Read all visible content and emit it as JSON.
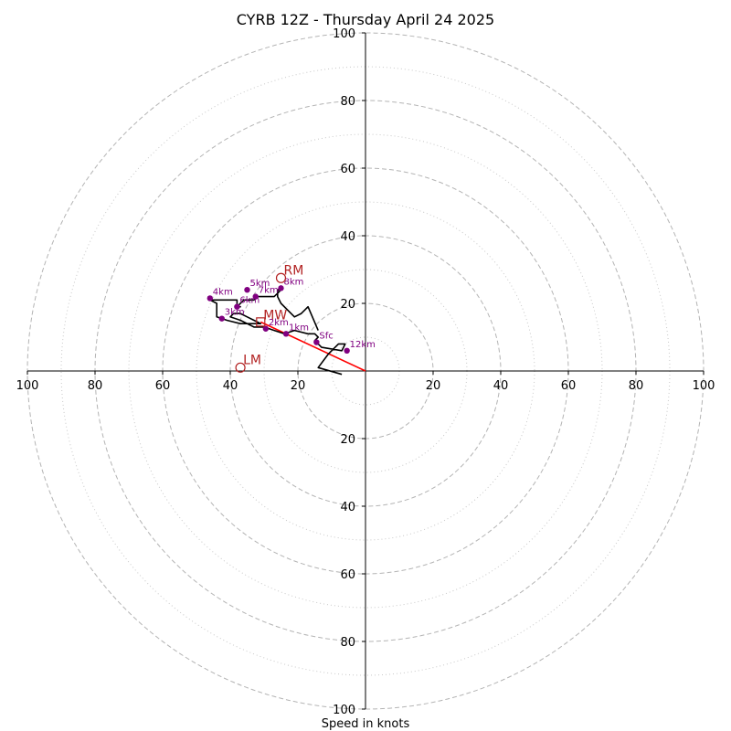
{
  "chart_data": {
    "type": "hodograph",
    "title": "CYRB 12Z - Thursday April 24 2025",
    "xlabel": "Speed in knots",
    "xlim": [
      -100,
      100
    ],
    "ylim": [
      -100,
      100
    ],
    "ring_major": [
      20,
      40,
      60,
      80,
      100
    ],
    "ring_minor": [
      10,
      30,
      50,
      70,
      90
    ],
    "x_ticks": [
      "100",
      "80",
      "60",
      "40",
      "20",
      "20",
      "40",
      "60",
      "80",
      "100"
    ],
    "x_tick_values": [
      -100,
      -80,
      -60,
      -40,
      -20,
      20,
      40,
      60,
      80,
      100
    ],
    "y_ticks": [
      "100",
      "80",
      "60",
      "40",
      "20",
      "20",
      "40",
      "60",
      "80",
      "100"
    ],
    "y_tick_values": [
      100,
      80,
      60,
      40,
      20,
      -20,
      -40,
      -60,
      -80,
      -100
    ],
    "profile": {
      "color": "#000000",
      "points": [
        [
          -7,
          -1
        ],
        [
          -14,
          1
        ],
        [
          -11,
          5
        ],
        [
          -8,
          8
        ],
        [
          -6,
          8
        ],
        [
          -7,
          6
        ],
        [
          -13,
          7
        ],
        [
          -15,
          9
        ],
        [
          -14,
          10
        ],
        [
          -15,
          11
        ],
        [
          -17,
          11
        ],
        [
          -21,
          12
        ],
        [
          -24,
          11
        ],
        [
          -27,
          12
        ],
        [
          -30,
          13
        ],
        [
          -33,
          13
        ],
        [
          -35,
          14
        ],
        [
          -37,
          15
        ],
        [
          -40,
          16
        ],
        [
          -39,
          17
        ],
        [
          -37,
          17
        ],
        [
          -35,
          16
        ],
        [
          -33,
          15
        ],
        [
          -31,
          14
        ],
        [
          -33,
          14
        ],
        [
          -37,
          14
        ],
        [
          -41,
          15
        ],
        [
          -44,
          16
        ],
        [
          -44,
          20
        ],
        [
          -46,
          21
        ],
        [
          -42,
          21
        ],
        [
          -38,
          21
        ],
        [
          -38,
          19
        ],
        [
          -37,
          19
        ],
        [
          -38,
          19
        ],
        [
          -36,
          21
        ],
        [
          -33,
          21
        ],
        [
          -32,
          22
        ],
        [
          -29,
          22
        ],
        [
          -27,
          22
        ],
        [
          -26,
          23
        ],
        [
          -25,
          24
        ],
        [
          -26,
          24
        ],
        [
          -26,
          22
        ],
        [
          -25,
          20
        ],
        [
          -23,
          18
        ],
        [
          -21,
          16
        ],
        [
          -19,
          17
        ],
        [
          -18,
          18
        ],
        [
          -17,
          19
        ],
        [
          -14,
          12
        ]
      ]
    },
    "height_markers": {
      "color": "#800080",
      "points": [
        {
          "label": "Sfc",
          "u": -14.5,
          "v": 8.5
        },
        {
          "label": "1km",
          "u": -23.5,
          "v": 11
        },
        {
          "label": "2km",
          "u": -29.5,
          "v": 12.5
        },
        {
          "label": "3km",
          "u": -42.5,
          "v": 15.5
        },
        {
          "label": "4km",
          "u": -46,
          "v": 21.5
        },
        {
          "label": "5km",
          "u": -35,
          "v": 24
        },
        {
          "label": "6km",
          "u": -38,
          "v": 19
        },
        {
          "label": "7km",
          "u": -32.5,
          "v": 22
        },
        {
          "label": "8km",
          "u": -25,
          "v": 24.5
        },
        {
          "label": "12km",
          "u": -5.5,
          "v": 6
        }
      ]
    },
    "bunkers_motion": {
      "color": "#b22222",
      "RM": {
        "label": "RM",
        "u": -25,
        "v": 27.5
      },
      "LM": {
        "label": "LM",
        "u": -37,
        "v": 1
      },
      "MW": {
        "label": "MW",
        "u": -31,
        "v": 14.5
      }
    },
    "shear_vector": {
      "color": "#ff0000",
      "from": [
        0,
        0
      ],
      "to": [
        -31,
        14.5
      ]
    }
  }
}
